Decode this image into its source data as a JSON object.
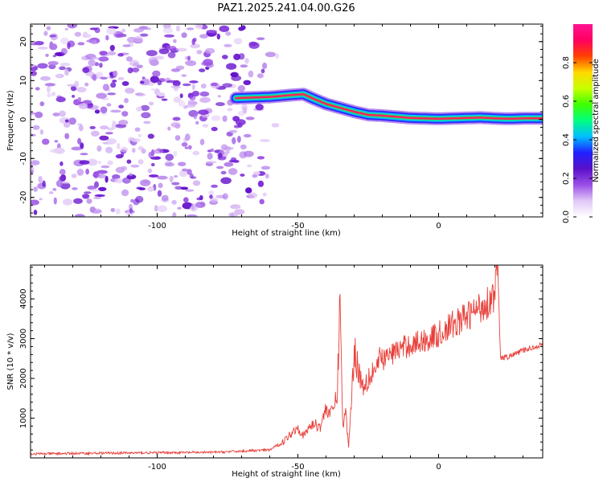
{
  "title": "PAZ1.2025.241.04.00.G26",
  "chart_data": [
    {
      "type": "heatmap",
      "title": "PAZ1.2025.241.04.00.G26",
      "xlabel": "Height of straight line (km)",
      "ylabel": "Frequency (Hz)",
      "xlim": [
        -145,
        37
      ],
      "ylim": [
        -25,
        24.5
      ],
      "xticks": [
        -100,
        -50,
        0
      ],
      "yticks": [
        -20,
        -10,
        0,
        10,
        20
      ],
      "noise_region_x": [
        -145,
        -57
      ],
      "ridge": {
        "x": [
          -72,
          -60,
          -52,
          -48,
          -45,
          -40,
          -35,
          -30,
          -25,
          -20,
          -15,
          -10,
          -5,
          0,
          5,
          10,
          15,
          20,
          25,
          30,
          37
        ],
        "y": [
          5.5,
          5.8,
          6.3,
          6.5,
          5.5,
          4.0,
          3.0,
          2.0,
          1.2,
          1.0,
          0.7,
          0.4,
          0.3,
          0.2,
          0.3,
          0.4,
          0.5,
          0.3,
          0.2,
          0.3,
          0.3
        ]
      },
      "colorbar": {
        "label": "Normalized spectral amplitude",
        "range": [
          0,
          1
        ],
        "ticks": [
          "0.0",
          "0.2",
          "0.4",
          "0.6",
          "0.8"
        ],
        "colors": [
          "#ffffff",
          "#e0c8f6",
          "#9a4ee6",
          "#5a10c8",
          "#2020ff",
          "#00bfff",
          "#00ff80",
          "#40ff00",
          "#c8ff00",
          "#ffd800",
          "#ff4000",
          "#ff0060",
          "#ff1493"
        ]
      }
    },
    {
      "type": "line",
      "xlabel": "Height of straight line (km)",
      "ylabel": "SNR (10 * v/v)",
      "xlim": [
        -145,
        37
      ],
      "ylim": [
        0,
        4850
      ],
      "xticks": [
        -100,
        -50,
        0
      ],
      "yticks": [
        1000,
        2000,
        3000,
        4000
      ],
      "line_color": "#e8403a",
      "x": [
        -145,
        -120,
        -100,
        -80,
        -60,
        -55,
        -52,
        -50,
        -48,
        -45,
        -42,
        -40,
        -38,
        -36,
        -35,
        -34,
        -33,
        -32,
        -30,
        -27,
        -25,
        -20,
        -15,
        -10,
        -5,
        0,
        5,
        10,
        15,
        18,
        20,
        21,
        22,
        25,
        30,
        37
      ],
      "y": [
        100,
        120,
        130,
        140,
        200,
        420,
        650,
        780,
        550,
        850,
        800,
        1250,
        1100,
        1600,
        4050,
        700,
        1200,
        250,
        2700,
        1800,
        2050,
        2450,
        2700,
        2850,
        2950,
        3100,
        3350,
        3550,
        3800,
        3950,
        4150,
        4850,
        2500,
        2550,
        2700,
        2850
      ]
    }
  ]
}
